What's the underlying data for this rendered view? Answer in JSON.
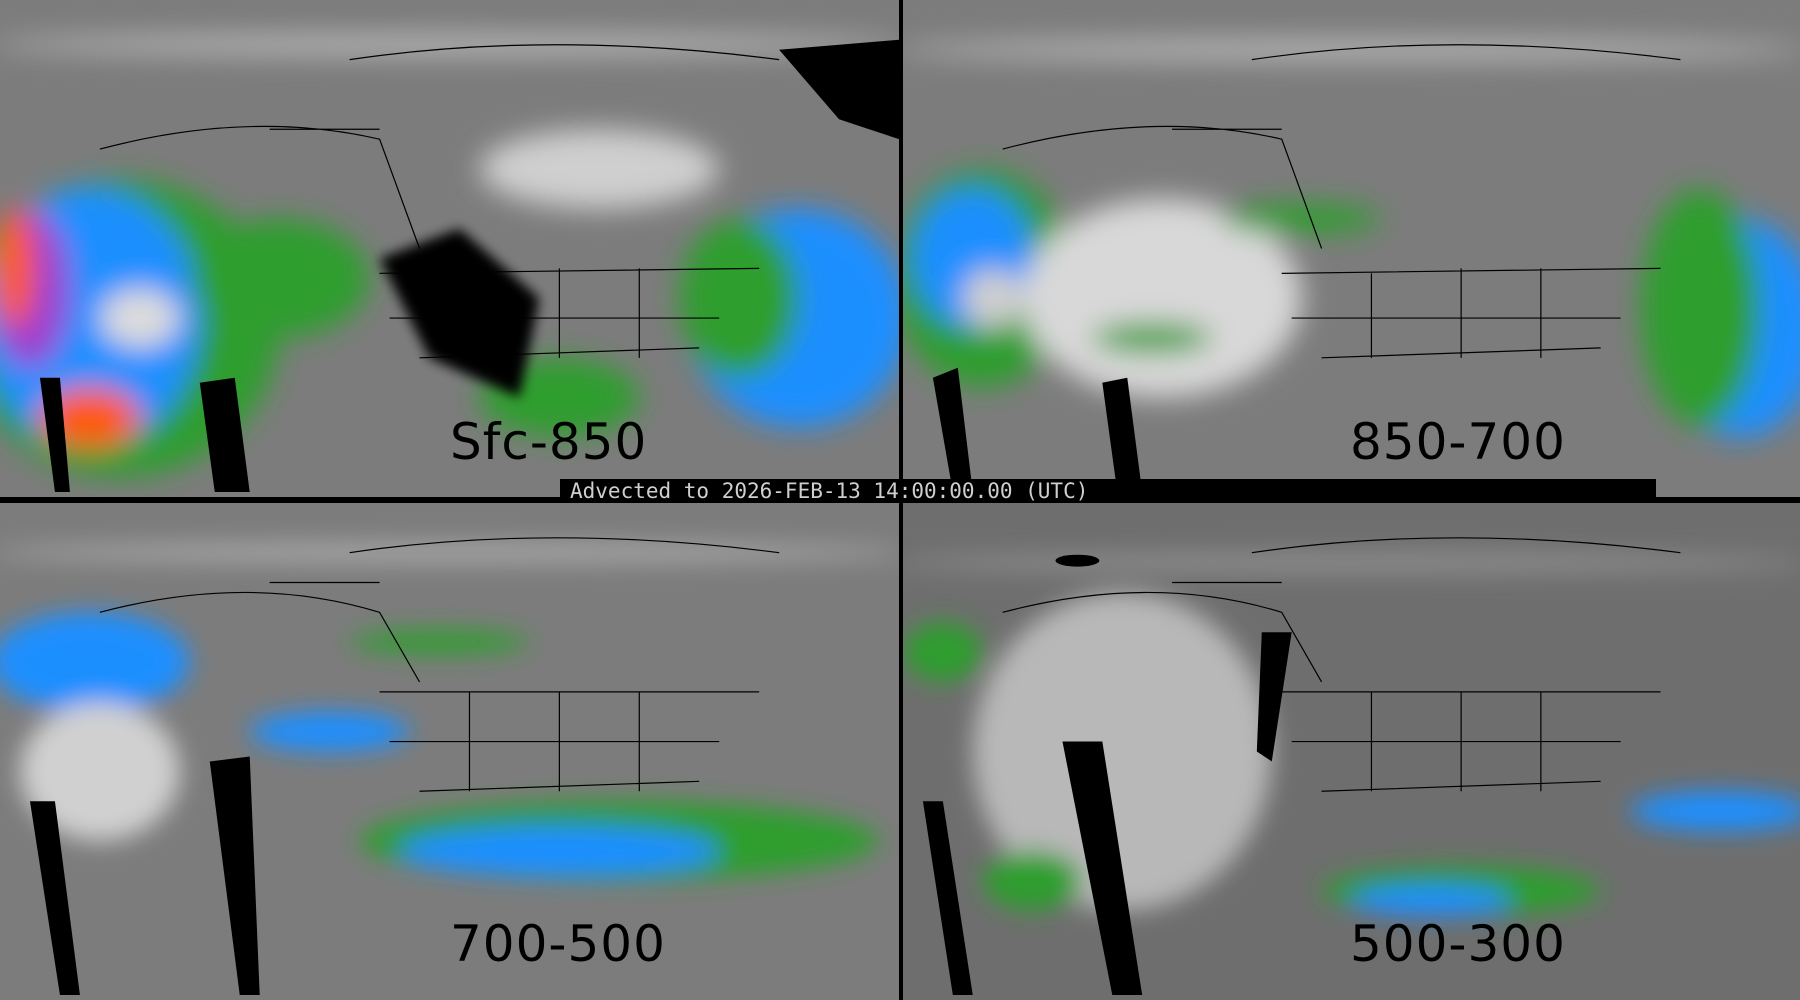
{
  "panels": [
    {
      "label": "Sfc-850",
      "id": "sfc-850"
    },
    {
      "label": "850-700",
      "id": "850-700"
    },
    {
      "label": "700-500",
      "id": "700-500"
    },
    {
      "label": "500-300",
      "id": "500-300"
    }
  ],
  "banner": {
    "text": "Advected to 2026-FEB-13 14:00:00.00 (UTC)"
  },
  "colors": {
    "background": "#7a7a7a",
    "low": "#2e9e2e",
    "mid": "#1f8fff",
    "high": "#9b3fd0",
    "extreme": "#ff5a10",
    "mask": "#000000"
  }
}
